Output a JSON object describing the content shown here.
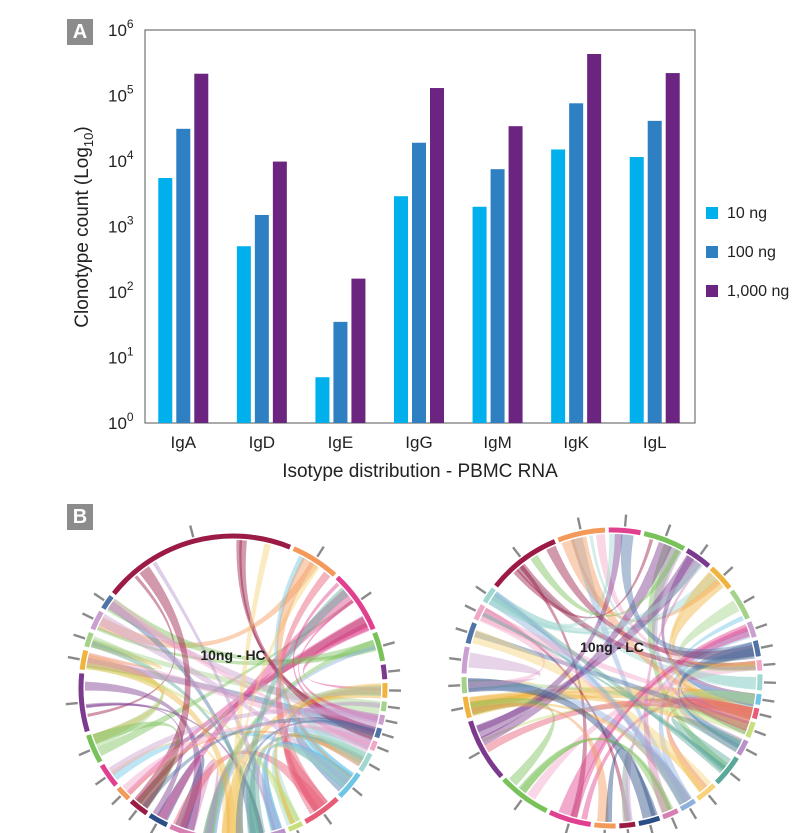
{
  "panel_a_label": "A",
  "panel_b_label": "B",
  "chart_data": [
    {
      "type": "bar",
      "scale": "log",
      "categories": [
        "IgA",
        "IgD",
        "IgE",
        "IgG",
        "IgM",
        "IgK",
        "IgL"
      ],
      "series": [
        {
          "name": "10 ng",
          "color": "#00b0ec",
          "values": [
            5500,
            500,
            5,
            2900,
            2000,
            15000,
            11500
          ]
        },
        {
          "name": "100 ng",
          "color": "#2f7fc3",
          "values": [
            31000,
            1500,
            35,
            19000,
            7500,
            76000,
            41000
          ]
        },
        {
          "name": "1,000 ng",
          "color": "#6b2580",
          "values": [
            215000,
            9800,
            160,
            130000,
            34000,
            430000,
            220000
          ]
        }
      ],
      "xlabel": "Isotype distribution - PBMC RNA",
      "ylabel_main": "Clonotype count (Log",
      "ylabel_sub": "10",
      "ylabel_close": ")",
      "ylim_exp": [
        0,
        6
      ],
      "ytick_base": "10",
      "ytick_exponents": [
        "0",
        "1",
        "2",
        "3",
        "4",
        "5",
        "6"
      ],
      "grid": false,
      "legend": "right"
    }
  ],
  "chords": [
    {
      "label": "10ng - HC"
    },
    {
      "label": "10ng - LC"
    }
  ]
}
